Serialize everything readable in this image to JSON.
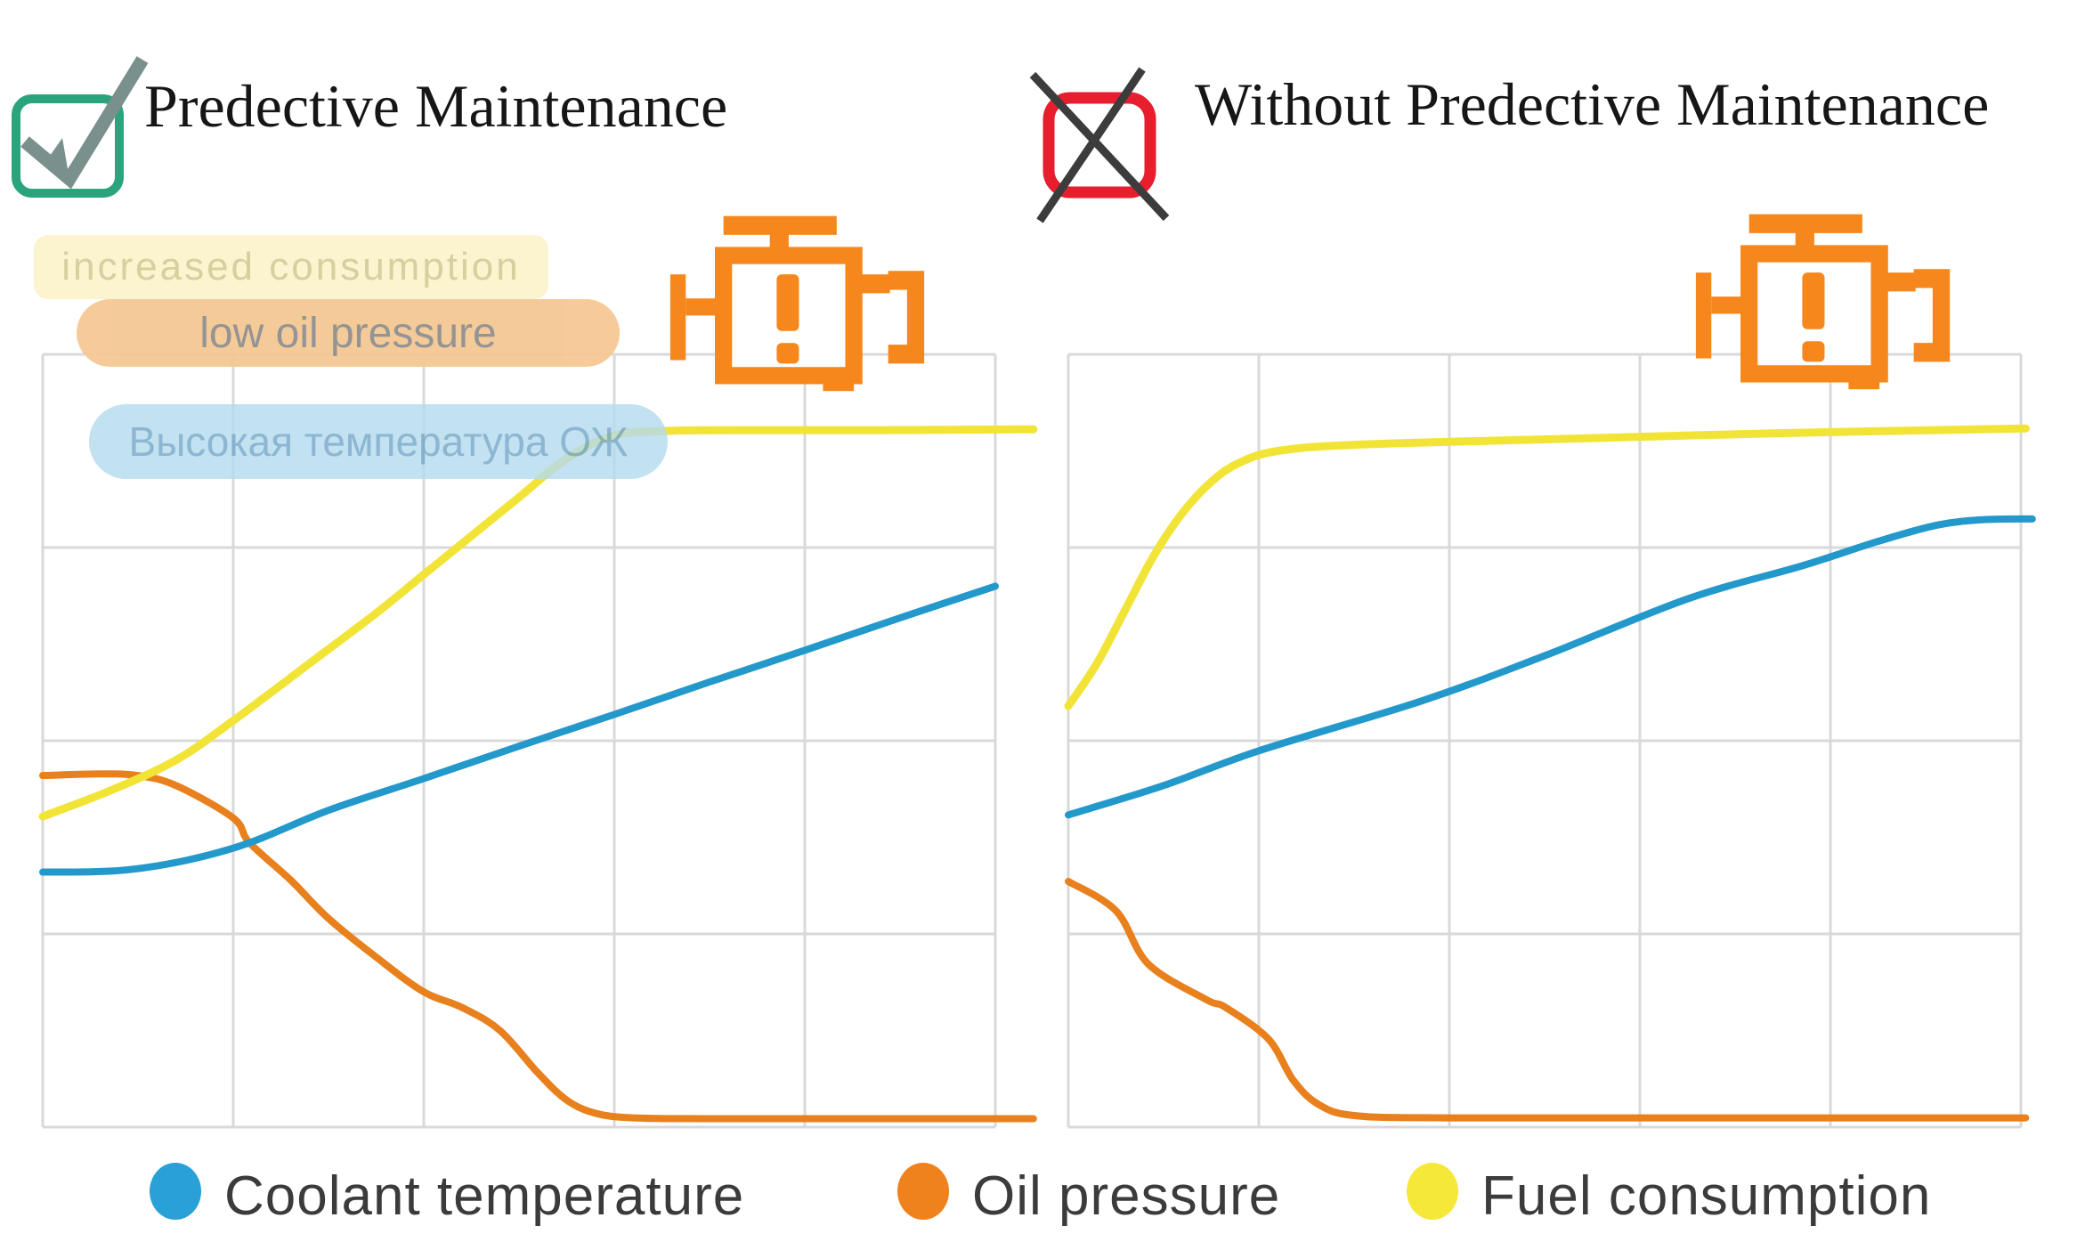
{
  "header": {
    "left": {
      "title": "Predective Maintenance"
    },
    "right": {
      "title": "Without Predective Maintenance"
    }
  },
  "icons": {
    "checkbox": {
      "name": "checkbox-checked-icon",
      "box_color": "#2ba47d",
      "check_color": "#7a908c"
    },
    "crossed_box": {
      "name": "crossed-box-icon",
      "box_color": "#e61e2e",
      "cross_color": "#3c3c3c"
    },
    "check_engine": {
      "name": "check-engine-warning-icon",
      "color": "#f6871c"
    }
  },
  "annotations": [
    {
      "id": "increased-consumption",
      "label": "increased consumption",
      "bg": "#fbf4cf",
      "text_color": "#d6cf9f"
    },
    {
      "id": "low-oil-pressure",
      "label": "low oil pressure",
      "bg": "#f5c894",
      "text_color": "#8f8f8f"
    },
    {
      "id": "high-coolant-temperature",
      "label": "Высокая температура ОЖ",
      "bg": "#b5dbee",
      "text_color": "#74a7c8"
    }
  ],
  "legend": [
    {
      "label": "Coolant temperature",
      "color": "#29a0d8"
    },
    {
      "label": "Oil pressure",
      "color": "#f0821e"
    },
    {
      "label": "Fuel consumption",
      "color": "#f6e838"
    }
  ],
  "chart_data": [
    {
      "id": "with-predictive-maintenance",
      "type": "line",
      "title": "Predective Maintenance",
      "xlabel": "",
      "ylabel": "",
      "x_range": [
        0,
        1
      ],
      "y_range": [
        0,
        1
      ],
      "grid": {
        "cols": 5,
        "rows": 4,
        "color": "#d9d9d9",
        "show": true
      },
      "legend_position": "bottom",
      "series": [
        {
          "name": "Oil pressure",
          "color": "#e8801d",
          "width": 8,
          "points": [
            [
              0.0,
              0.455
            ],
            [
              0.06,
              0.457
            ],
            [
              0.1,
              0.455
            ],
            [
              0.14,
              0.442
            ],
            [
              0.2,
              0.4
            ],
            [
              0.217,
              0.368
            ],
            [
              0.26,
              0.32
            ],
            [
              0.3,
              0.27
            ],
            [
              0.35,
              0.22
            ],
            [
              0.4,
              0.175
            ],
            [
              0.44,
              0.155
            ],
            [
              0.48,
              0.125
            ],
            [
              0.52,
              0.07
            ],
            [
              0.55,
              0.035
            ],
            [
              0.58,
              0.018
            ],
            [
              0.62,
              0.012
            ],
            [
              0.7,
              0.011
            ],
            [
              0.85,
              0.011
            ],
            [
              1.04,
              0.011
            ]
          ]
        },
        {
          "name": "Coolant temperature",
          "color": "#2398cb",
          "width": 8,
          "points": [
            [
              0.0,
              0.33
            ],
            [
              0.08,
              0.332
            ],
            [
              0.15,
              0.345
            ],
            [
              0.217,
              0.368
            ],
            [
              0.3,
              0.41
            ],
            [
              0.4,
              0.451
            ],
            [
              0.5,
              0.493
            ],
            [
              0.6,
              0.534
            ],
            [
              0.7,
              0.576
            ],
            [
              0.8,
              0.617
            ],
            [
              0.9,
              0.659
            ],
            [
              1.0,
              0.7
            ]
          ]
        },
        {
          "name": "Fuel consumption",
          "color": "#f2e437",
          "width": 9,
          "points": [
            [
              0.0,
              0.402
            ],
            [
              0.07,
              0.435
            ],
            [
              0.14,
              0.475
            ],
            [
              0.2,
              0.526
            ],
            [
              0.28,
              0.6
            ],
            [
              0.35,
              0.665
            ],
            [
              0.4,
              0.715
            ],
            [
              0.45,
              0.765
            ],
            [
              0.5,
              0.815
            ],
            [
              0.55,
              0.865
            ],
            [
              0.6,
              0.895
            ],
            [
              0.66,
              0.901
            ],
            [
              0.75,
              0.902
            ],
            [
              0.88,
              0.902
            ],
            [
              1.04,
              0.903
            ]
          ]
        }
      ]
    },
    {
      "id": "without-predictive-maintenance",
      "type": "line",
      "title": "Without Predective Maintenance",
      "xlabel": "",
      "ylabel": "",
      "x_range": [
        0,
        1
      ],
      "y_range": [
        0,
        1
      ],
      "grid": {
        "cols": 5,
        "rows": 4,
        "color": "#d9d9d9",
        "show": true
      },
      "legend_position": "bottom",
      "series": [
        {
          "name": "Oil pressure",
          "color": "#e8801d",
          "width": 8,
          "points": [
            [
              0.0,
              0.318
            ],
            [
              0.05,
              0.28
            ],
            [
              0.084,
              0.211
            ],
            [
              0.145,
              0.165
            ],
            [
              0.165,
              0.155
            ],
            [
              0.21,
              0.114
            ],
            [
              0.236,
              0.061
            ],
            [
              0.262,
              0.03
            ],
            [
              0.3,
              0.015
            ],
            [
              0.4,
              0.012
            ],
            [
              0.7,
              0.012
            ],
            [
              1.005,
              0.012
            ]
          ]
        },
        {
          "name": "Coolant temperature",
          "color": "#2398cb",
          "width": 8,
          "points": [
            [
              0.0,
              0.404
            ],
            [
              0.1,
              0.442
            ],
            [
              0.2,
              0.487
            ],
            [
              0.372,
              0.552
            ],
            [
              0.5,
              0.61
            ],
            [
              0.651,
              0.684
            ],
            [
              0.772,
              0.727
            ],
            [
              0.85,
              0.758
            ],
            [
              0.912,
              0.779
            ],
            [
              0.96,
              0.786
            ],
            [
              1.012,
              0.787
            ]
          ]
        },
        {
          "name": "Fuel consumption",
          "color": "#f2e437",
          "width": 9,
          "points": [
            [
              0.0,
              0.545
            ],
            [
              0.03,
              0.6
            ],
            [
              0.06,
              0.67
            ],
            [
              0.09,
              0.74
            ],
            [
              0.12,
              0.795
            ],
            [
              0.15,
              0.835
            ],
            [
              0.18,
              0.86
            ],
            [
              0.22,
              0.875
            ],
            [
              0.3,
              0.883
            ],
            [
              0.5,
              0.89
            ],
            [
              0.75,
              0.898
            ],
            [
              1.005,
              0.904
            ]
          ]
        }
      ]
    }
  ]
}
